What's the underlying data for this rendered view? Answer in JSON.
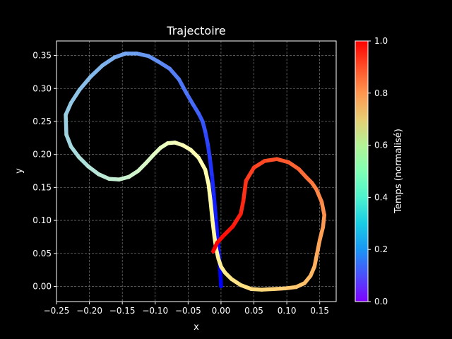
{
  "chart_data": {
    "type": "line",
    "title": "Trajectoire",
    "xlabel": "x",
    "ylabel": "y",
    "xlim": [
      -0.25,
      0.175
    ],
    "ylim": [
      -0.023,
      0.372
    ],
    "xticks": [
      -0.25,
      -0.2,
      -0.15,
      -0.1,
      -0.05,
      0.0,
      0.05,
      0.1,
      0.15
    ],
    "xtick_labels": [
      "−0.25",
      "−0.20",
      "−0.15",
      "−0.10",
      "−0.05",
      "0.00",
      "0.05",
      "0.10",
      "0.15"
    ],
    "yticks": [
      0.0,
      0.05,
      0.1,
      0.15,
      0.2,
      0.25,
      0.3,
      0.35
    ],
    "ytick_labels": [
      "0.00",
      "0.05",
      "0.10",
      "0.15",
      "0.20",
      "0.25",
      "0.30",
      "0.35"
    ],
    "grid": true,
    "colorbar": {
      "label": "Temps (normalisé)",
      "range": [
        0.0,
        1.0
      ],
      "ticks": [
        0.0,
        0.2,
        0.4,
        0.6,
        0.8,
        1.0
      ],
      "tick_labels": [
        "0.0",
        "0.2",
        "0.4",
        "0.6",
        "0.8",
        "1.0"
      ],
      "colormap": "rainbow"
    },
    "series": [
      {
        "x": [
          0.0,
          -0.002,
          -0.005,
          -0.008,
          -0.011,
          -0.014,
          -0.017,
          -0.02,
          -0.024,
          -0.028,
          -0.034,
          -0.042,
          -0.052,
          -0.064,
          -0.078,
          -0.094,
          -0.11,
          -0.128,
          -0.145,
          -0.162,
          -0.18,
          -0.198,
          -0.215,
          -0.228,
          -0.236,
          -0.235,
          -0.228,
          -0.216,
          -0.202,
          -0.186,
          -0.17,
          -0.155,
          -0.14,
          -0.126,
          -0.114,
          -0.103,
          -0.092,
          -0.081,
          -0.07,
          -0.058,
          -0.046,
          -0.034,
          -0.024,
          -0.019,
          -0.016,
          -0.013,
          -0.01,
          -0.007,
          -0.004,
          0.0,
          0.006,
          0.016,
          0.03,
          0.046,
          0.062,
          0.08,
          0.098,
          0.114,
          0.127,
          0.136,
          0.142,
          0.146,
          0.15,
          0.155,
          0.157,
          0.153,
          0.145,
          0.138,
          0.13,
          0.118,
          0.103,
          0.085,
          0.066,
          0.05,
          0.038,
          0.034,
          0.03,
          0.018,
          0.004,
          -0.006,
          -0.012
        ],
        "y": [
          0.0,
          0.035,
          0.07,
          0.105,
          0.14,
          0.17,
          0.195,
          0.215,
          0.235,
          0.25,
          0.262,
          0.275,
          0.292,
          0.314,
          0.33,
          0.34,
          0.349,
          0.353,
          0.353,
          0.347,
          0.335,
          0.318,
          0.298,
          0.278,
          0.26,
          0.23,
          0.212,
          0.196,
          0.182,
          0.17,
          0.163,
          0.162,
          0.166,
          0.175,
          0.187,
          0.199,
          0.21,
          0.217,
          0.218,
          0.214,
          0.207,
          0.195,
          0.177,
          0.155,
          0.13,
          0.1,
          0.075,
          0.055,
          0.042,
          0.03,
          0.021,
          0.011,
          0.002,
          -0.004,
          -0.005,
          -0.004,
          -0.003,
          -0.001,
          0.005,
          0.016,
          0.03,
          0.05,
          0.07,
          0.09,
          0.108,
          0.128,
          0.147,
          0.157,
          0.165,
          0.178,
          0.188,
          0.193,
          0.19,
          0.18,
          0.16,
          0.13,
          0.11,
          0.091,
          0.077,
          0.066,
          0.053
        ]
      }
    ]
  }
}
